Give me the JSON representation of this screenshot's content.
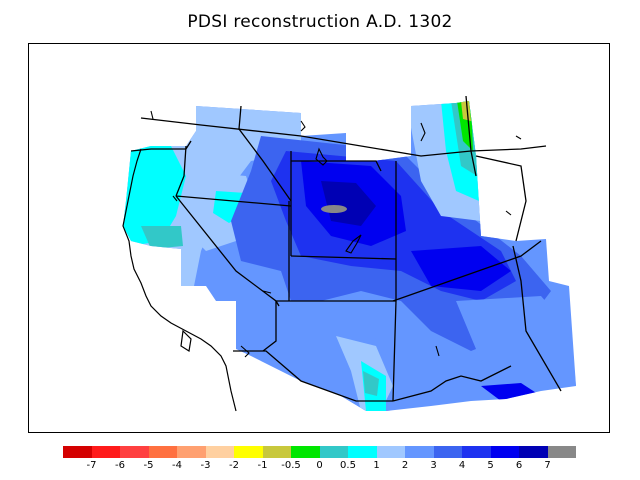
{
  "title": "PDSI reconstruction A.D. 1302",
  "legend": {
    "colors": [
      "#d40000",
      "#ff1a1a",
      "#ff4040",
      "#ff7040",
      "#ffa070",
      "#ffd0a0",
      "#ffff00",
      "#c8c83c",
      "#00e600",
      "#32c8c8",
      "#00ffff",
      "#a0c8ff",
      "#6496ff",
      "#3c64f0",
      "#1e32f0",
      "#0000f0",
      "#0000b4",
      "#888888"
    ],
    "ticks": [
      "-7",
      "-6",
      "-5",
      "-4",
      "-3",
      "-2",
      "-1",
      "-0.5",
      "0",
      "0.5",
      "1",
      "2",
      "3",
      "4",
      "5",
      "6",
      "7"
    ]
  }
}
